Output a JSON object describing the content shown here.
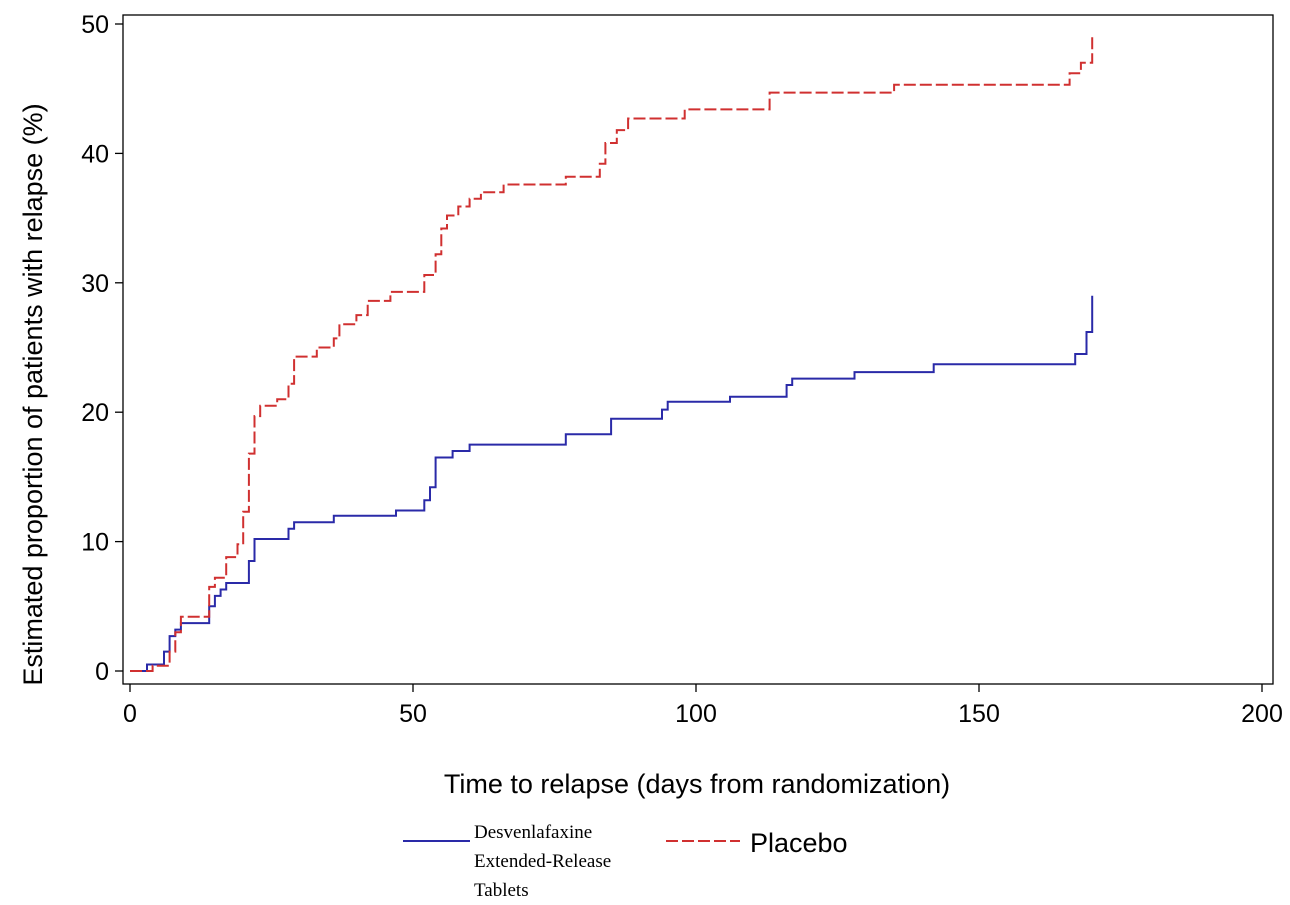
{
  "chart_data": {
    "type": "line",
    "step": true,
    "xlabel": "Time to relapse (days from randomization)",
    "ylabel": "Estimated proportion of patients with relapse (%)",
    "xlim": [
      0,
      200
    ],
    "ylim": [
      0,
      50
    ],
    "xticks": [
      0,
      50,
      100,
      150,
      200
    ],
    "yticks": [
      0,
      10,
      20,
      30,
      40,
      50
    ],
    "grid": false,
    "legend_position": "bottom",
    "series": [
      {
        "name": "Desvenlafaxine Extended-Release Tablets",
        "name_lines": [
          "Desvenlafaxine",
          "Extended-Release",
          "Tablets"
        ],
        "color": "#2a2aa8",
        "dash": "solid",
        "points": [
          [
            0,
            0
          ],
          [
            3,
            0
          ],
          [
            3,
            0.5
          ],
          [
            6,
            0.5
          ],
          [
            6,
            1.5
          ],
          [
            7,
            1.5
          ],
          [
            7,
            2.7
          ],
          [
            8,
            2.7
          ],
          [
            8,
            3.2
          ],
          [
            9,
            3.2
          ],
          [
            9,
            3.7
          ],
          [
            14,
            3.7
          ],
          [
            14,
            5.0
          ],
          [
            15,
            5.0
          ],
          [
            15,
            5.8
          ],
          [
            16,
            5.8
          ],
          [
            16,
            6.3
          ],
          [
            17,
            6.3
          ],
          [
            17,
            6.8
          ],
          [
            21,
            6.8
          ],
          [
            21,
            8.5
          ],
          [
            22,
            8.5
          ],
          [
            22,
            10.2
          ],
          [
            28,
            10.2
          ],
          [
            28,
            11.0
          ],
          [
            29,
            11.0
          ],
          [
            29,
            11.5
          ],
          [
            36,
            11.5
          ],
          [
            36,
            12.0
          ],
          [
            47,
            12.0
          ],
          [
            47,
            12.4
          ],
          [
            52,
            12.4
          ],
          [
            52,
            13.2
          ],
          [
            53,
            13.2
          ],
          [
            53,
            14.2
          ],
          [
            54,
            14.2
          ],
          [
            54,
            16.5
          ],
          [
            57,
            16.5
          ],
          [
            57,
            17.0
          ],
          [
            60,
            17.0
          ],
          [
            60,
            17.5
          ],
          [
            77,
            17.5
          ],
          [
            77,
            18.3
          ],
          [
            85,
            18.3
          ],
          [
            85,
            19.5
          ],
          [
            94,
            19.5
          ],
          [
            94,
            20.2
          ],
          [
            95,
            20.2
          ],
          [
            95,
            20.8
          ],
          [
            106,
            20.8
          ],
          [
            106,
            21.2
          ],
          [
            116,
            21.2
          ],
          [
            116,
            22.1
          ],
          [
            117,
            22.1
          ],
          [
            117,
            22.6
          ],
          [
            128,
            22.6
          ],
          [
            128,
            23.1
          ],
          [
            142,
            23.1
          ],
          [
            142,
            23.7
          ],
          [
            167,
            23.7
          ],
          [
            167,
            24.5
          ],
          [
            169,
            24.5
          ],
          [
            169,
            26.2
          ],
          [
            170,
            26.2
          ],
          [
            170,
            29.0
          ]
        ]
      },
      {
        "name": "Placebo",
        "color": "#d03030",
        "dash": "dashed",
        "points": [
          [
            0,
            0
          ],
          [
            4,
            0
          ],
          [
            4,
            0.4
          ],
          [
            7,
            0.4
          ],
          [
            7,
            1.5
          ],
          [
            8,
            1.5
          ],
          [
            8,
            3.0
          ],
          [
            9,
            3.0
          ],
          [
            9,
            4.2
          ],
          [
            14,
            4.2
          ],
          [
            14,
            6.5
          ],
          [
            15,
            6.5
          ],
          [
            15,
            7.2
          ],
          [
            17,
            7.2
          ],
          [
            17,
            8.8
          ],
          [
            19,
            8.8
          ],
          [
            19,
            9.8
          ],
          [
            20,
            9.8
          ],
          [
            20,
            12.3
          ],
          [
            21,
            12.3
          ],
          [
            21,
            16.8
          ],
          [
            22,
            16.8
          ],
          [
            22,
            19.7
          ],
          [
            23,
            19.7
          ],
          [
            23,
            20.5
          ],
          [
            26,
            20.5
          ],
          [
            26,
            21.0
          ],
          [
            28,
            21.0
          ],
          [
            28,
            22.2
          ],
          [
            29,
            22.2
          ],
          [
            29,
            24.3
          ],
          [
            33,
            24.3
          ],
          [
            33,
            25.0
          ],
          [
            36,
            25.0
          ],
          [
            36,
            25.7
          ],
          [
            37,
            25.7
          ],
          [
            37,
            26.8
          ],
          [
            40,
            26.8
          ],
          [
            40,
            27.5
          ],
          [
            42,
            27.5
          ],
          [
            42,
            28.6
          ],
          [
            46,
            28.6
          ],
          [
            46,
            29.3
          ],
          [
            52,
            29.3
          ],
          [
            52,
            30.6
          ],
          [
            54,
            30.6
          ],
          [
            54,
            32.2
          ],
          [
            55,
            32.2
          ],
          [
            55,
            34.2
          ],
          [
            56,
            34.2
          ],
          [
            56,
            35.2
          ],
          [
            58,
            35.2
          ],
          [
            58,
            35.9
          ],
          [
            60,
            35.9
          ],
          [
            60,
            36.5
          ],
          [
            62,
            36.5
          ],
          [
            62,
            37.0
          ],
          [
            66,
            37.0
          ],
          [
            66,
            37.6
          ],
          [
            77,
            37.6
          ],
          [
            77,
            38.2
          ],
          [
            83,
            38.2
          ],
          [
            83,
            39.2
          ],
          [
            84,
            39.2
          ],
          [
            84,
            40.8
          ],
          [
            86,
            40.8
          ],
          [
            86,
            41.8
          ],
          [
            88,
            41.8
          ],
          [
            88,
            42.7
          ],
          [
            98,
            42.7
          ],
          [
            98,
            43.4
          ],
          [
            113,
            43.4
          ],
          [
            113,
            44.7
          ],
          [
            135,
            44.7
          ],
          [
            135,
            45.3
          ],
          [
            166,
            45.3
          ],
          [
            166,
            46.2
          ],
          [
            168,
            46.2
          ],
          [
            168,
            47.0
          ],
          [
            170,
            47.0
          ],
          [
            170,
            49.0
          ]
        ]
      }
    ]
  }
}
